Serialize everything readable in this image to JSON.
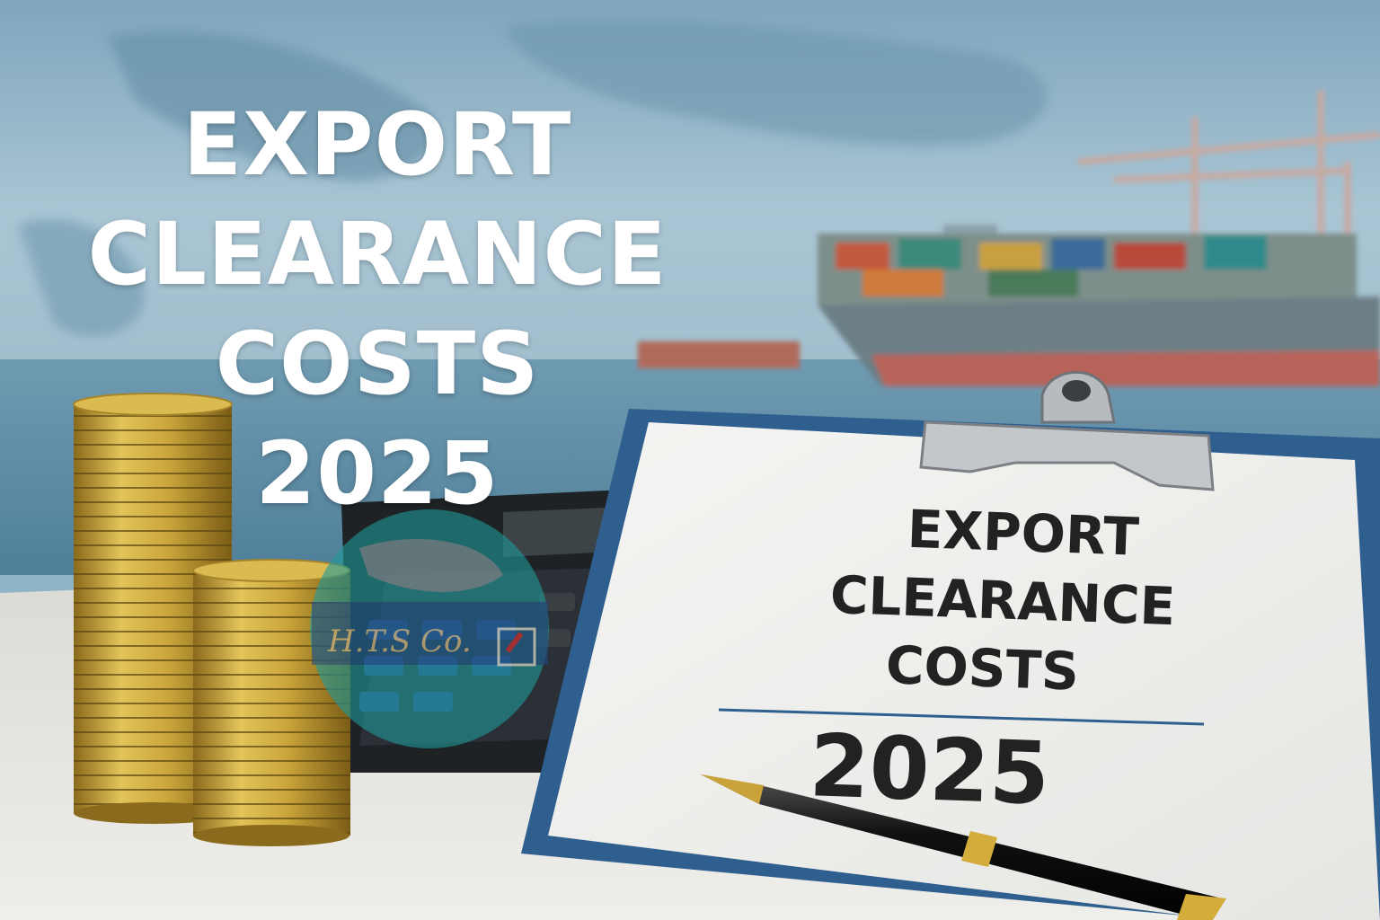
{
  "headline": {
    "line1": "EXPORT",
    "line2": "CLEARANCE",
    "line3": "COSTS",
    "line4": "2025"
  },
  "clipboard": {
    "line1": "EXPORT",
    "line2": "CLEARANCE",
    "line3": "COSTS",
    "year": "2025"
  },
  "watermark": {
    "text": "H.T.S Co."
  },
  "colors": {
    "sky": "#8fb3c6",
    "sea": "#5f8ea6",
    "desk": "#e6e4df",
    "clipboard_blue": "#2f5f8f",
    "coin_gold": "#c9a53a",
    "text_dark": "#222222"
  }
}
